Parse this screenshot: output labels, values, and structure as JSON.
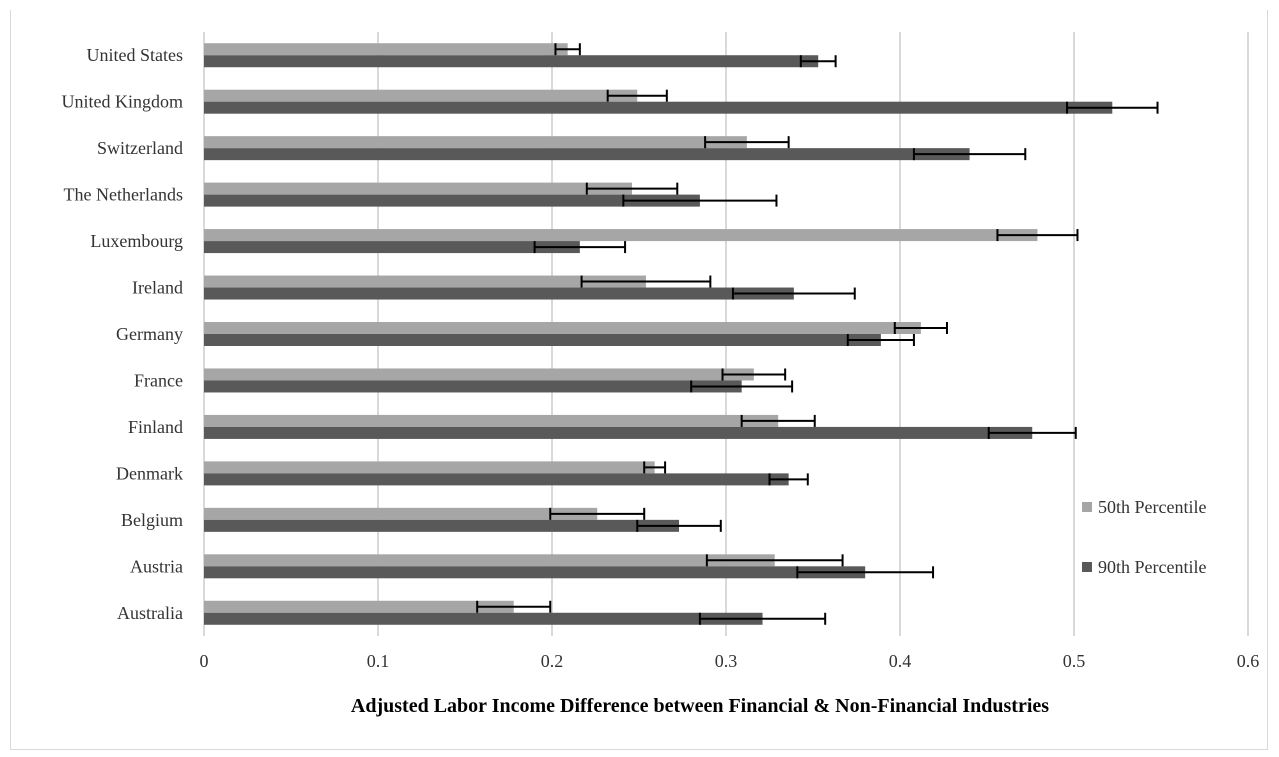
{
  "chart_data": {
    "type": "bar",
    "orientation": "horizontal",
    "title": "",
    "xlabel": "Adjusted Labor Income Difference between Financial & Non-Financial Industries",
    "ylabel": "",
    "xlim": [
      0,
      0.6
    ],
    "x_ticks": [
      "0",
      "0.1",
      "0.2",
      "0.3",
      "0.4",
      "0.5",
      "0.6"
    ],
    "grid": "vertical",
    "legend_position": "right",
    "categories": [
      "United States",
      "United Kingdom",
      "Switzerland",
      "The Netherlands",
      "Luxembourg",
      "Ireland",
      "Germany",
      "France",
      "Finland",
      "Denmark",
      "Belgium",
      "Austria",
      "Australia"
    ],
    "series": [
      {
        "name": "50th Percentile",
        "color": "#a6a6a6",
        "values": [
          0.209,
          0.249,
          0.312,
          0.246,
          0.479,
          0.254,
          0.412,
          0.316,
          0.33,
          0.259,
          0.226,
          0.328,
          0.178
        ],
        "error": [
          0.007,
          0.017,
          0.024,
          0.026,
          0.023,
          0.037,
          0.015,
          0.018,
          0.021,
          0.006,
          0.027,
          0.039,
          0.021
        ]
      },
      {
        "name": "90th Percentile",
        "color": "#595959",
        "values": [
          0.353,
          0.522,
          0.44,
          0.285,
          0.216,
          0.339,
          0.389,
          0.309,
          0.476,
          0.336,
          0.273,
          0.38,
          0.321
        ],
        "error": [
          0.01,
          0.026,
          0.032,
          0.044,
          0.026,
          0.035,
          0.019,
          0.029,
          0.025,
          0.011,
          0.024,
          0.039,
          0.036
        ]
      }
    ]
  }
}
